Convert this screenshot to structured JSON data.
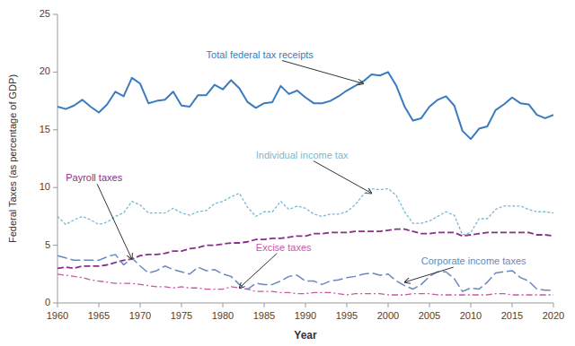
{
  "chart_data": {
    "type": "line",
    "x": [
      1960,
      1961,
      1962,
      1963,
      1964,
      1965,
      1966,
      1967,
      1968,
      1969,
      1970,
      1971,
      1972,
      1973,
      1974,
      1975,
      1976,
      1977,
      1978,
      1979,
      1980,
      1981,
      1982,
      1983,
      1984,
      1985,
      1986,
      1987,
      1988,
      1989,
      1990,
      1991,
      1992,
      1993,
      1994,
      1995,
      1996,
      1997,
      1998,
      1999,
      2000,
      2001,
      2002,
      2003,
      2004,
      2005,
      2006,
      2007,
      2008,
      2009,
      2010,
      2011,
      2012,
      2013,
      2014,
      2015,
      2016,
      2017,
      2018,
      2019,
      2020
    ],
    "series": [
      {
        "color": "#3a7abf",
        "line_style": "solid",
        "values": [
          17.0,
          16.8,
          17.1,
          17.6,
          17.0,
          16.5,
          17.2,
          18.3,
          17.9,
          19.5,
          19.0,
          17.3,
          17.5,
          17.6,
          18.3,
          17.1,
          17.0,
          18.0,
          18.0,
          18.9,
          18.5,
          19.3,
          18.6,
          17.4,
          16.9,
          17.3,
          17.4,
          18.8,
          18.1,
          18.4,
          17.8,
          17.3,
          17.3,
          17.5,
          17.9,
          18.4,
          18.8,
          19.2,
          19.8,
          19.7,
          20.0,
          18.8,
          17.0,
          15.8,
          16.0,
          17.0,
          17.6,
          17.9,
          17.1,
          14.9,
          14.2,
          15.1,
          15.3,
          16.7,
          17.2,
          17.8,
          17.3,
          17.2,
          16.3,
          16.0,
          16.3
        ]
      },
      {
        "color": "#7ab8d4",
        "line_style": "dotted",
        "values": [
          7.5,
          6.8,
          7.2,
          7.5,
          7.2,
          6.8,
          7.0,
          7.5,
          7.8,
          8.8,
          8.5,
          7.8,
          7.8,
          7.8,
          8.2,
          7.8,
          7.6,
          7.9,
          8.0,
          8.6,
          8.8,
          9.2,
          9.5,
          8.3,
          7.5,
          7.9,
          7.9,
          8.8,
          8.1,
          8.4,
          8.2,
          7.7,
          7.5,
          7.7,
          7.7,
          7.9,
          8.5,
          9.4,
          9.9,
          9.8,
          9.9,
          9.3,
          7.9,
          6.9,
          6.9,
          7.1,
          7.5,
          7.9,
          7.6,
          5.9,
          6.1,
          7.3,
          7.3,
          8.1,
          8.4,
          8.4,
          8.4,
          8.1,
          7.9,
          7.9,
          7.8
        ]
      },
      {
        "color": "#8b2f8b",
        "line_style": "dashed",
        "values": [
          3.0,
          3.1,
          3.0,
          3.2,
          3.2,
          3.2,
          3.3,
          3.5,
          3.7,
          3.8,
          4.1,
          4.2,
          4.2,
          4.3,
          4.5,
          4.5,
          4.7,
          4.8,
          5.0,
          5.0,
          5.1,
          5.2,
          5.2,
          5.3,
          5.5,
          5.5,
          5.6,
          5.6,
          5.7,
          5.8,
          5.8,
          6.0,
          6.0,
          6.1,
          6.1,
          6.1,
          6.2,
          6.2,
          6.2,
          6.2,
          6.3,
          6.4,
          6.4,
          6.2,
          6.0,
          6.0,
          6.1,
          6.1,
          6.1,
          5.8,
          5.9,
          6.0,
          6.1,
          6.1,
          6.1,
          6.1,
          6.1,
          6.1,
          5.9,
          5.9,
          5.8
        ]
      },
      {
        "color": "#c45aa0",
        "line_style": "dashdot",
        "values": [
          2.5,
          2.4,
          2.3,
          2.2,
          2.0,
          1.9,
          1.8,
          1.7,
          1.7,
          1.7,
          1.6,
          1.5,
          1.4,
          1.4,
          1.3,
          1.4,
          1.3,
          1.3,
          1.2,
          1.2,
          1.2,
          1.4,
          1.3,
          1.2,
          1.0,
          1.0,
          1.0,
          0.9,
          0.9,
          0.8,
          0.8,
          0.9,
          0.9,
          0.9,
          0.8,
          0.7,
          0.8,
          0.8,
          0.8,
          0.8,
          0.7,
          0.7,
          0.7,
          0.8,
          0.8,
          0.8,
          0.7,
          0.7,
          0.7,
          0.7,
          0.7,
          0.7,
          0.7,
          0.8,
          0.8,
          0.7,
          0.7,
          0.7,
          0.7,
          0.7,
          0.7
        ]
      },
      {
        "color": "#6888c0",
        "line_style": "longdash",
        "values": [
          4.1,
          3.9,
          3.7,
          3.7,
          3.7,
          3.7,
          4.0,
          4.2,
          3.3,
          3.9,
          3.2,
          2.6,
          2.8,
          3.2,
          2.9,
          2.7,
          2.5,
          3.1,
          2.8,
          2.9,
          2.5,
          2.3,
          1.6,
          1.2,
          1.7,
          1.6,
          1.6,
          1.9,
          2.3,
          2.4,
          1.9,
          1.9,
          1.6,
          1.9,
          2.0,
          2.2,
          2.3,
          2.5,
          2.6,
          2.4,
          2.5,
          1.9,
          1.5,
          1.2,
          1.6,
          2.3,
          2.7,
          2.7,
          2.1,
          1.0,
          1.3,
          1.2,
          1.8,
          2.6,
          2.7,
          2.8,
          2.2,
          1.9,
          1.2,
          1.1,
          1.1
        ]
      }
    ],
    "x_label": "Year",
    "y_label": "Federal Taxes (as percentage of GDP)",
    "xlim": [
      1960,
      2020
    ],
    "ylim": [
      0,
      25
    ],
    "xticks": [
      1960,
      1965,
      1970,
      1975,
      1980,
      1985,
      1990,
      1995,
      2000,
      2005,
      2010,
      2015,
      2020
    ],
    "yticks": [
      0,
      5,
      10,
      15,
      20,
      25
    ],
    "grid": false,
    "annotations": [
      {
        "text": "Total federal tax receipts",
        "x": 1997,
        "y": 19.0,
        "text_x": 1978,
        "text_y": 21.0,
        "color": "#3a7abf"
      },
      {
        "text": "Individual income tax",
        "x": 1998,
        "y": 9.5,
        "text_x": 1984,
        "text_y": 12.3,
        "color": "#7ab8d4"
      },
      {
        "text": "Payroll taxes",
        "x": 1969,
        "y": 3.8,
        "text_x": 1961,
        "text_y": 10.3,
        "color": "#8b2f8b"
      },
      {
        "text": "Excise taxes",
        "x": 1982,
        "y": 1.3,
        "text_x": 1984,
        "text_y": 4.3,
        "color": "#c45aa0"
      },
      {
        "text": "Corporate income taxes",
        "x": 2002,
        "y": 1.8,
        "text_x": 2004,
        "text_y": 3.1,
        "color": "#6888c0"
      }
    ]
  }
}
